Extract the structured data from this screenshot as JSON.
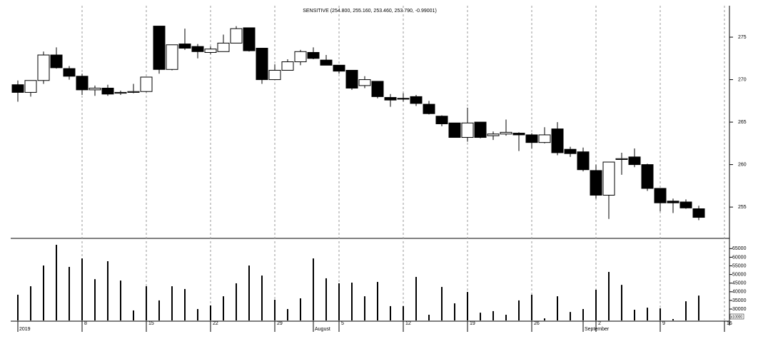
{
  "chart_data": {
    "type": "candlestick",
    "title": "SENSITIVE (254.800, 255.160, 253.460, 253.790, -0.99001)",
    "categories": [
      null,
      null,
      null,
      null,
      null,
      "8",
      null,
      null,
      null,
      null,
      "15",
      null,
      null,
      null,
      null,
      "22",
      null,
      null,
      null,
      null,
      "29",
      null,
      null,
      null,
      null,
      "5",
      null,
      null,
      null,
      null,
      "12",
      null,
      null,
      null,
      null,
      "19",
      null,
      null,
      null,
      null,
      "26",
      null,
      null,
      null,
      null,
      "2",
      null,
      null,
      null,
      null,
      "9",
      null,
      null,
      null,
      null,
      "16"
    ],
    "period_labels": [
      "2019",
      null,
      null,
      null,
      null,
      null,
      null,
      null,
      null,
      null,
      null,
      null,
      null,
      null,
      null,
      null,
      null,
      null,
      null,
      null,
      null,
      null,
      null,
      "August",
      null,
      null,
      null,
      null,
      null,
      null,
      null,
      null,
      null,
      null,
      null,
      null,
      null,
      null,
      null,
      null,
      null,
      null,
      null,
      null,
      "September",
      null,
      null,
      null,
      null,
      null,
      null,
      null,
      null,
      null,
      null,
      null
    ],
    "open": [
      269.4,
      268.5,
      269.9,
      272.9,
      271.3,
      270.4,
      268.8,
      269.0,
      268.4,
      268.5,
      268.6,
      276.3,
      271.2,
      274.2,
      273.9,
      273.2,
      273.3,
      274.3,
      276.1,
      273.7,
      270.0,
      271.1,
      272.1,
      273.2,
      272.3,
      271.7,
      271.1,
      269.3,
      269.8,
      267.9,
      267.8,
      268.0,
      267.1,
      265.7,
      264.9,
      263.2,
      265.0,
      263.4,
      263.6,
      263.7,
      263.5,
      262.6,
      264.2,
      261.8,
      261.5,
      259.3,
      256.4,
      260.6,
      260.9,
      260.0,
      257.2,
      255.7,
      255.6,
      254.8,
      null,
      null
    ],
    "high": [
      269.9,
      269.9,
      273.3,
      273.8,
      271.6,
      270.7,
      269.3,
      269.4,
      268.7,
      269.5,
      270.3,
      276.3,
      274.1,
      276.0,
      274.2,
      273.9,
      275.3,
      276.3,
      276.1,
      273.7,
      271.8,
      272.4,
      273.5,
      273.8,
      272.9,
      271.7,
      271.1,
      270.4,
      269.8,
      268.3,
      268.4,
      268.2,
      267.5,
      265.8,
      264.9,
      266.7,
      265.0,
      263.9,
      265.3,
      263.8,
      263.7,
      264.4,
      265.0,
      262.1,
      262.0,
      260.0,
      260.3,
      261.4,
      261.9,
      260.1,
      257.2,
      256.0,
      255.9,
      255.16,
      null,
      null
    ],
    "low": [
      267.4,
      268.0,
      269.5,
      271.3,
      270.0,
      268.2,
      268.1,
      268.1,
      268.2,
      268.4,
      268.5,
      270.7,
      271.1,
      273.5,
      272.5,
      273.0,
      273.3,
      274.3,
      273.3,
      269.5,
      270.0,
      271.1,
      271.7,
      272.4,
      271.7,
      270.7,
      268.8,
      269.0,
      267.8,
      266.8,
      267.4,
      266.9,
      265.9,
      264.5,
      263.2,
      262.7,
      263.1,
      262.9,
      263.4,
      261.6,
      261.9,
      262.5,
      261.1,
      260.9,
      259.2,
      256.0,
      253.6,
      258.8,
      259.7,
      256.9,
      254.5,
      254.3,
      254.8,
      253.46,
      null,
      null
    ],
    "close": [
      268.5,
      269.9,
      272.9,
      271.4,
      270.4,
      268.8,
      269.0,
      268.3,
      268.5,
      268.6,
      270.3,
      271.2,
      274.1,
      273.7,
      273.3,
      273.6,
      274.3,
      276.0,
      273.4,
      270.0,
      271.1,
      272.1,
      273.3,
      272.5,
      271.7,
      271.0,
      269.0,
      270.0,
      268.0,
      267.6,
      267.7,
      267.2,
      266.0,
      264.8,
      263.2,
      264.9,
      263.2,
      263.6,
      263.8,
      263.5,
      262.6,
      263.5,
      261.4,
      261.3,
      259.4,
      256.4,
      260.3,
      260.7,
      260.0,
      257.2,
      255.5,
      255.5,
      254.9,
      253.79,
      null,
      null
    ],
    "up_color": "#ffffff",
    "down_color": "#000000",
    "ylim": [
      251.4,
      278.7
    ],
    "yticks": [
      255,
      260,
      265,
      270,
      275
    ],
    "volume": {
      "values": [
        38300,
        43200,
        55200,
        67200,
        54400,
        59300,
        47300,
        57700,
        46500,
        29200,
        43200,
        35000,
        43200,
        41600,
        30000,
        32100,
        37400,
        44900,
        55200,
        49400,
        35400,
        30000,
        36200,
        59300,
        47800,
        44900,
        45300,
        37400,
        45700,
        31700,
        31700,
        48600,
        26700,
        42800,
        33300,
        39900,
        27900,
        28800,
        26700,
        35000,
        38300,
        24600,
        37400,
        28300,
        30000,
        41200,
        51500,
        44000,
        29600,
        30800,
        30400,
        24200,
        34500,
        37800,
        null,
        null
      ],
      "color": "#000000",
      "ylim": [
        23400,
        70500
      ],
      "yticks": [
        30000,
        35000,
        40000,
        45000,
        50000,
        55000,
        60000,
        65000
      ],
      "unit_label": "x10000"
    },
    "grid": true
  }
}
